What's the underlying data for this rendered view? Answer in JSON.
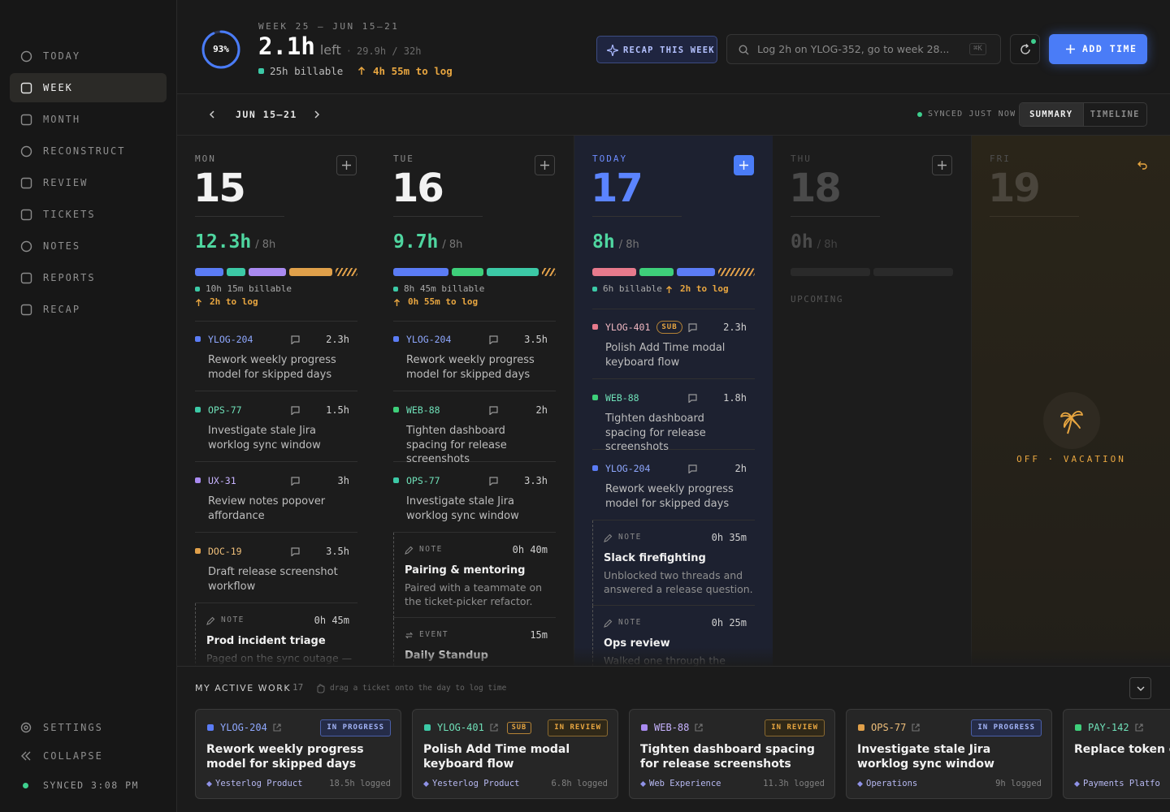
{
  "sidebar": {
    "nav": [
      "TODAY",
      "WEEK",
      "MONTH",
      "RECONSTRUCT",
      "REVIEW",
      "TICKETS",
      "NOTES",
      "REPORTS",
      "RECAP"
    ],
    "settings": "SETTINGS",
    "collapse": "COLLAPSE",
    "synced": "SYNCED 3:08 PM"
  },
  "header": {
    "progress": {
      "value": 93,
      "label": "93%"
    },
    "week": "WEEK 25 — JUN 15–21",
    "left_hours": "2.1h",
    "left_word": "left",
    "sep": "·",
    "total": "29.9h / 32h",
    "billable": "25h billable",
    "to_log": "4h 55m to log",
    "recap": "RECAP THIS WEEK",
    "search": "Log 2h on YLOG-352, go to week 28...",
    "kbd": "⌘K",
    "add": "ADD TIME"
  },
  "toolbar": {
    "range": "JUN 15–21",
    "synced": "SYNCED JUST NOW",
    "tabs": [
      "SUMMARY",
      "TIMELINE"
    ]
  },
  "days": [
    {
      "dow": "MON",
      "date": "15",
      "hours": "12.3h",
      "target": "/ 8h",
      "billable": "10h 15m billable",
      "to_log": "2h to log",
      "entries": [
        {
          "ticket": "YLOG-204",
          "hours": "2.3h",
          "desc": "Rework weekly progress model for skipped days",
          "color": "#5b7cf5"
        },
        {
          "ticket": "OPS-77",
          "hours": "1.5h",
          "desc": "Investigate stale Jira worklog sync window",
          "color": "#3cc9a6"
        },
        {
          "ticket": "UX-31",
          "hours": "3h",
          "desc": "Review notes popover affordance",
          "color": "#a98af0"
        },
        {
          "ticket": "DOC-19",
          "hours": "3.5h",
          "desc": "Draft release screenshot workflow",
          "color": "#e0a04a"
        }
      ],
      "notes": [
        {
          "kind": "NOTE",
          "time": "0h 45m",
          "title": "Prod incident triage",
          "desc": "Paged on the sync outage —"
        }
      ]
    },
    {
      "dow": "TUE",
      "date": "16",
      "hours": "9.7h",
      "target": "/ 8h",
      "billable": "8h 45m billable",
      "to_log": "0h 55m to log",
      "entries": [
        {
          "ticket": "YLOG-204",
          "hours": "3.5h",
          "desc": "Rework weekly progress model for skipped days",
          "color": "#5b7cf5"
        },
        {
          "ticket": "WEB-88",
          "hours": "2h",
          "desc": "Tighten dashboard spacing for release screenshots",
          "color": "#3ecf7a"
        },
        {
          "ticket": "OPS-77",
          "hours": "3.3h",
          "desc": "Investigate stale Jira worklog sync window",
          "color": "#3cc9a6"
        }
      ],
      "notes": [
        {
          "kind": "NOTE",
          "time": "0h 40m",
          "title": "Pairing & mentoring",
          "desc": "Paired with a teammate on the ticket-picker refactor."
        },
        {
          "kind": "EVENT",
          "time": "15m",
          "title": "Daily Standup"
        }
      ]
    },
    {
      "dow": "TODAY",
      "date": "17",
      "hours": "8h",
      "target": "/ 8h",
      "billable": "6h billable",
      "to_log": "2h to log",
      "entries": [
        {
          "ticket": "YLOG-401",
          "sub": "SUB",
          "hours": "2.3h",
          "desc": "Polish Add Time modal keyboard flow",
          "color": "#e77a8c"
        },
        {
          "ticket": "WEB-88",
          "hours": "1.8h",
          "desc": "Tighten dashboard spacing for release screenshots",
          "color": "#3ecf7a"
        },
        {
          "ticket": "YLOG-204",
          "hours": "2h",
          "desc": "Rework weekly progress model for skipped days",
          "color": "#5b7cf5"
        }
      ],
      "notes": [
        {
          "kind": "NOTE",
          "time": "0h 35m",
          "title": "Slack firefighting",
          "desc": "Unblocked two threads and answered a release question."
        },
        {
          "kind": "NOTE",
          "time": "0h 25m",
          "title": "Ops review",
          "desc": "Walked one through the"
        }
      ]
    },
    {
      "dow": "THU",
      "date": "18",
      "hours": "0h",
      "target": "/ 8h",
      "status": "UPCOMING"
    },
    {
      "dow": "FRI",
      "date": "19",
      "off": "OFF · VACATION"
    }
  ],
  "active_work": {
    "title": "MY ACTIVE WORK",
    "count": "17",
    "hint": "drag a ticket onto the day to log time",
    "cards": [
      {
        "ticket": "YLOG-204",
        "status": "IN PROGRESS",
        "title": "Rework weekly progress model for skipped days",
        "project": "Yesterlog Product",
        "logged": "18.5h logged",
        "color": "#5b7cf5"
      },
      {
        "ticket": "YLOG-401",
        "sub": "SUB",
        "status": "IN REVIEW",
        "title": "Polish Add Time modal keyboard flow",
        "project": "Yesterlog Product",
        "logged": "6.8h logged",
        "color": "#3cc9a6"
      },
      {
        "ticket": "WEB-88",
        "status": "IN REVIEW",
        "title": "Tighten dashboard spacing for release screenshots",
        "project": "Web Experience",
        "logged": "11.3h logged",
        "color": "#a98af0"
      },
      {
        "ticket": "OPS-77",
        "status": "IN PROGRESS",
        "title": "Investigate stale Jira worklog sync window",
        "project": "Operations",
        "logged": "9h logged",
        "color": "#e0a04a"
      },
      {
        "ticket": "PAY-142",
        "title": "Replace token c",
        "project": "Payments Platfo",
        "color": "#3ecf7a"
      }
    ]
  }
}
